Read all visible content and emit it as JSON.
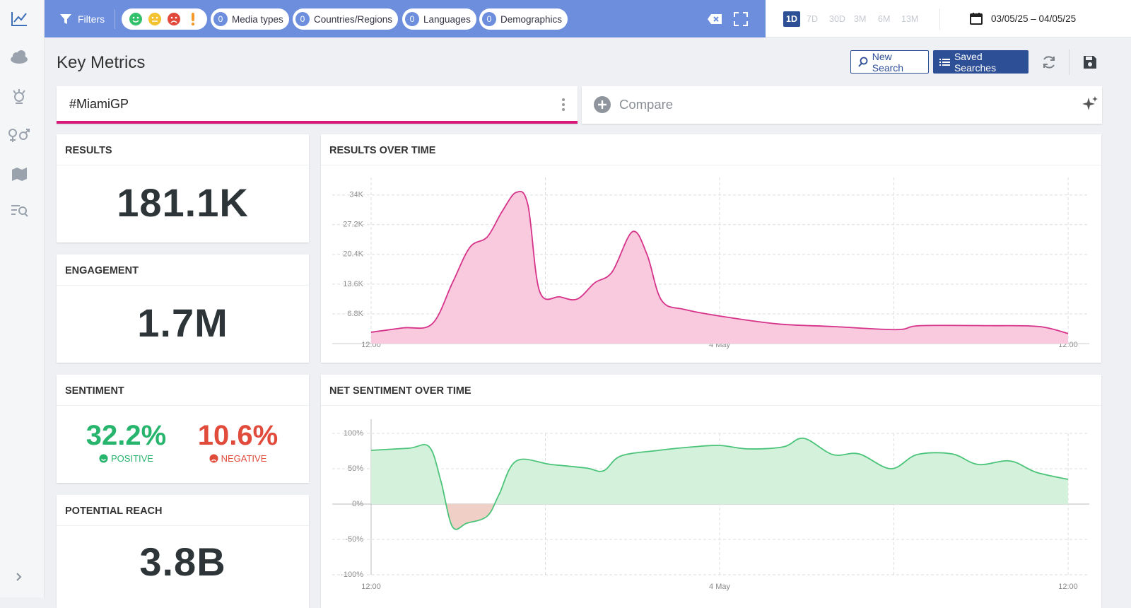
{
  "toolbar": {
    "filters": "Filters",
    "chips": [
      {
        "count": 0,
        "label": "Media types"
      },
      {
        "count": 0,
        "label": "Countries/Regions"
      },
      {
        "count": 0,
        "label": "Languages"
      },
      {
        "count": 0,
        "label": "Demographics"
      }
    ],
    "ranges": [
      {
        "label": "1D",
        "active": true
      },
      {
        "label": "7D",
        "active": false
      },
      {
        "label": "30D",
        "active": false
      },
      {
        "label": "3M",
        "active": false
      },
      {
        "label": "6M",
        "active": false
      },
      {
        "label": "13M",
        "active": false
      }
    ],
    "date_range": "03/05/25 – 04/05/25"
  },
  "header": {
    "title": "Key Metrics",
    "new_search": "New Search",
    "saved_searches": "Saved Searches"
  },
  "search": {
    "query": "#MiamiGP",
    "compare": "Compare"
  },
  "metrics": {
    "results": {
      "title": "RESULTS",
      "value": "181.1K"
    },
    "engagement": {
      "title": "ENGAGEMENT",
      "value": "1.7M"
    },
    "sentiment": {
      "title": "SENTIMENT",
      "positive": {
        "value": "32.2%",
        "label": "POSITIVE"
      },
      "negative": {
        "value": "10.6%",
        "label": "NEGATIVE"
      }
    },
    "reach": {
      "title": "POTENTIAL REACH",
      "value": "3.8B"
    }
  },
  "chart_data": [
    {
      "type": "area",
      "title": "RESULTS OVER TIME",
      "x": [
        0,
        1.1,
        2.1,
        2.8,
        3.4,
        4.0,
        4.5,
        5.0,
        5.4,
        5.8,
        6.5,
        7.1,
        7.7,
        8.3,
        9.0,
        9.5,
        10.0,
        10.8,
        12.1,
        14.0,
        15.9,
        18.1,
        18.9,
        21.3,
        23.0,
        24
      ],
      "values": [
        2600,
        3600,
        4500,
        13900,
        22000,
        24400,
        30100,
        34600,
        31700,
        12000,
        10700,
        10200,
        13900,
        16400,
        25600,
        20400,
        9900,
        7800,
        6200,
        4500,
        3900,
        3200,
        4100,
        4100,
        3900,
        2300
      ],
      "color": "#d6338a",
      "fill": "#f9c9de",
      "xlim": [
        0,
        24
      ],
      "xticks": [
        {
          "value": 0,
          "label": "12:00"
        },
        {
          "value": 6,
          "label": null
        },
        {
          "value": 12,
          "label": "4 May"
        },
        {
          "value": 18,
          "label": null
        },
        {
          "value": 24,
          "label": "12:00"
        }
      ],
      "ylim": [
        0,
        38000
      ],
      "yticks": [
        {
          "value": 6800,
          "label": "6.8K"
        },
        {
          "value": 13600,
          "label": "13.6K"
        },
        {
          "value": 20400,
          "label": "20.4K"
        },
        {
          "value": 27200,
          "label": "27.2K"
        },
        {
          "value": 34000,
          "label": "34K"
        }
      ],
      "grid": true
    },
    {
      "type": "area",
      "title": "NET SENTIMENT OVER TIME",
      "x": [
        0,
        1.3,
        2.0,
        2.4,
        2.8,
        3.3,
        4.0,
        4.4,
        5.0,
        6.2,
        7.4,
        8.0,
        8.6,
        9.9,
        11.1,
        12.0,
        13.0,
        14.2,
        14.9,
        15.9,
        16.8,
        17.9,
        18.8,
        20.0,
        20.9,
        22.0,
        22.9,
        24
      ],
      "values": [
        76,
        79,
        81,
        33,
        -32,
        -27,
        -17,
        13,
        61,
        56,
        51,
        47,
        68,
        76,
        81,
        83,
        78,
        81,
        93,
        70,
        71,
        50,
        70,
        71,
        56,
        61,
        45,
        35
      ],
      "color": "#4cc47a",
      "fill": "#d3f1db",
      "negative_fill": "#efcfc6",
      "xlim": [
        0,
        24
      ],
      "xticks": [
        {
          "value": 0,
          "label": "12:00"
        },
        {
          "value": 6,
          "label": null
        },
        {
          "value": 12,
          "label": "4 May"
        },
        {
          "value": 18,
          "label": null
        },
        {
          "value": 24,
          "label": "12:00"
        }
      ],
      "ylim": [
        -100,
        100
      ],
      "yticks": [
        {
          "value": -100,
          "label": "-100%"
        },
        {
          "value": -50,
          "label": "-50%"
        },
        {
          "value": 0,
          "label": "0%"
        },
        {
          "value": 50,
          "label": "50%"
        },
        {
          "value": 100,
          "label": "100%"
        }
      ],
      "grid": true
    }
  ]
}
